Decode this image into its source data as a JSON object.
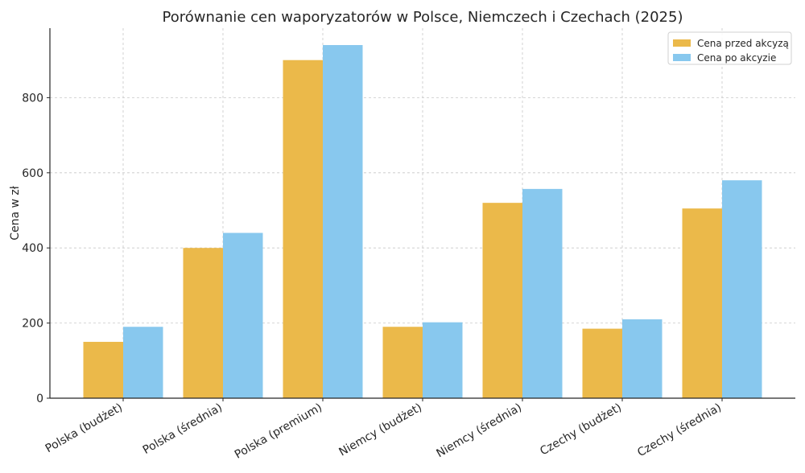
{
  "chart_data": {
    "type": "bar",
    "title": "Porównanie cen waporyzatorów w Polsce, Niemczech i Czechach (2025)",
    "xlabel": "",
    "ylabel": "Cena w zł",
    "ylim": [
      0,
      985
    ],
    "yticks": [
      0,
      200,
      400,
      600,
      800
    ],
    "grid": true,
    "legend_position": "top-right",
    "categories": [
      "Polska (budżet)",
      "Polska (średnia)",
      "Polska (premium)",
      "Niemcy (budżet)",
      "Niemcy (średnia)",
      "Czechy (budżet)",
      "Czechy (średnia)"
    ],
    "series": [
      {
        "name": "Cena przed akcyzą",
        "color": "#EBB94A",
        "values": [
          150,
          400,
          900,
          190,
          520,
          185,
          505
        ]
      },
      {
        "name": "Cena po akcyzie",
        "color": "#88C8EE",
        "values": [
          190,
          440,
          940,
          202,
          557,
          210,
          580
        ]
      }
    ]
  }
}
